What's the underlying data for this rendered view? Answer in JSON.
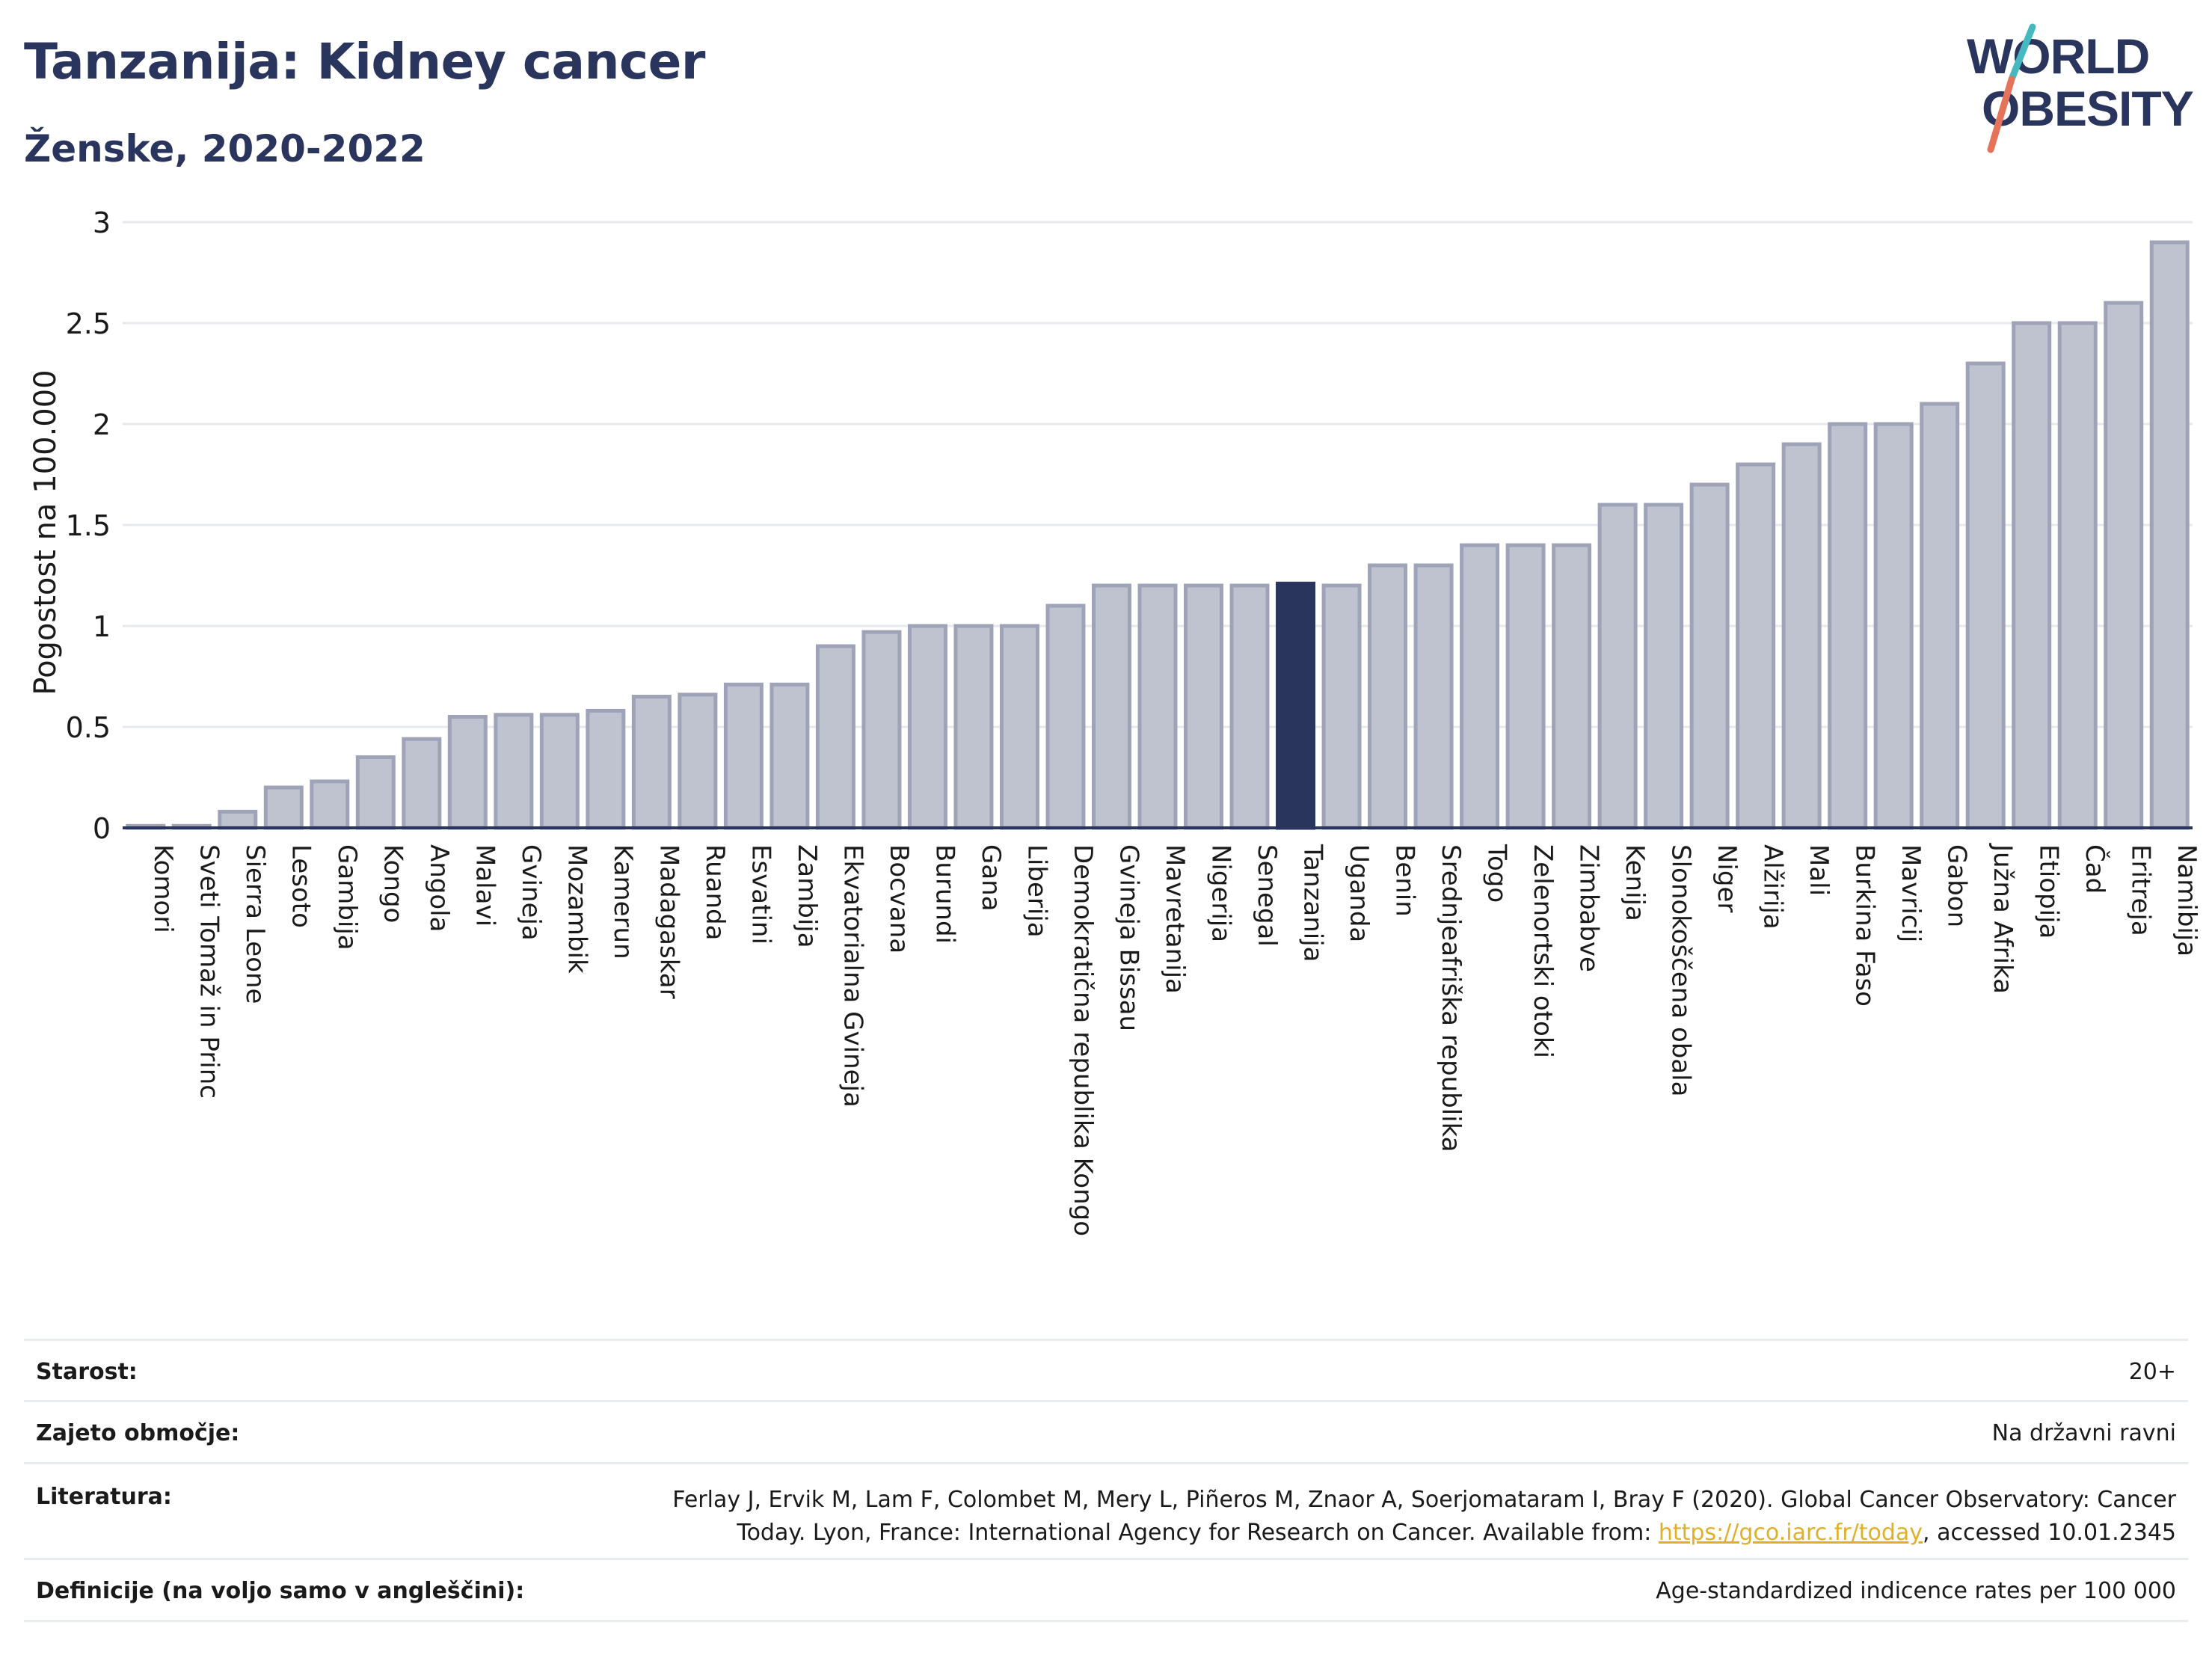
{
  "header": {
    "title": "Tanzanija: Kidney cancer",
    "subtitle": "Ženske, 2020-2022"
  },
  "logo": {
    "line1": "WORLD",
    "line2": "OBESITY"
  },
  "colors": {
    "bar": "#bfc3d0",
    "bar_border": "#9ea3b8",
    "highlight": "#2a355e",
    "title": "#2a355e",
    "logo_slash_top": "#45b8c0",
    "logo_slash_bottom": "#e5735a"
  },
  "chart_data": {
    "type": "bar",
    "ylabel": "Pogostost na 100.000",
    "ylim": [
      0,
      3
    ],
    "yticks": [
      "0",
      "0.5",
      "1",
      "1.5",
      "2",
      "2.5",
      "3"
    ],
    "grid": true,
    "highlight": "Tanzanija",
    "categories": [
      "Komori",
      "Sveti Tomaž in Princ",
      "Sierra Leone",
      "Lesoto",
      "Gambija",
      "Kongo",
      "Angola",
      "Malavi",
      "Gvineja",
      "Mozambik",
      "Kamerun",
      "Madagaskar",
      "Ruanda",
      "Esvatini",
      "Zambija",
      "Ekvatorialna Gvineja",
      "Bocvana",
      "Burundi",
      "Gana",
      "Liberija",
      "Demokratična republika Kongo",
      "Gvineja Bissau",
      "Mavretanija",
      "Nigerija",
      "Senegal",
      "Tanzanija",
      "Uganda",
      "Benin",
      "Srednjeafriška republika",
      "Togo",
      "Zelenortski otoki",
      "Zimbabve",
      "Kenija",
      "Slonokoščena obala",
      "Niger",
      "Alžirija",
      "Mali",
      "Burkina Faso",
      "Mavricij",
      "Gabon",
      "Južna Afrika",
      "Etiopija",
      "Čad",
      "Eritreja",
      "Namibija"
    ],
    "values": [
      0.01,
      0.01,
      0.08,
      0.2,
      0.23,
      0.35,
      0.44,
      0.55,
      0.56,
      0.56,
      0.58,
      0.65,
      0.66,
      0.71,
      0.71,
      0.9,
      0.97,
      1.0,
      1.0,
      1.0,
      1.1,
      1.2,
      1.2,
      1.2,
      1.2,
      1.21,
      1.2,
      1.3,
      1.3,
      1.4,
      1.4,
      1.4,
      1.6,
      1.6,
      1.7,
      1.8,
      1.9,
      2.0,
      2.0,
      2.1,
      2.3,
      2.5,
      2.5,
      2.6,
      2.9
    ]
  },
  "info": {
    "age_label": "Starost:",
    "age_value": "20+",
    "coverage_label": "Zajeto območje:",
    "coverage_value": "Na državni ravni",
    "ref_label": "Literatura:",
    "ref_line1": "Ferlay J, Ervik M, Lam F, Colombet M, Mery L, Piñeros M, Znaor A, Soerjomataram I, Bray F (2020). Global Cancer Observatory: Cancer",
    "ref_line2_pre": "Today. Lyon, France: International Agency for Research on Cancer. Available from: ",
    "ref_link": "https://gco.iarc.fr/today",
    "ref_line2_post": ", accessed 10.01.2345",
    "def_label": "Definicije (na voljo samo v angleščini):",
    "def_value": "Age-standardized indicence rates per 100 000"
  }
}
